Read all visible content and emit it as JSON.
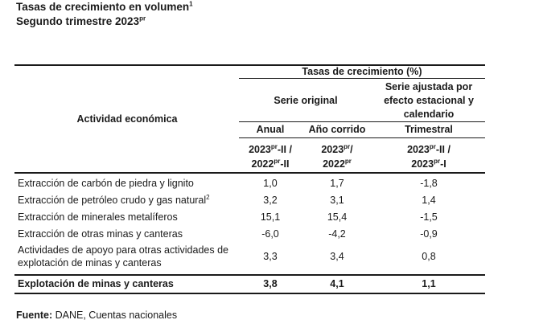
{
  "title": {
    "line1": "Tasas de crecimiento en volumen",
    "line1_sup": "1",
    "line2": "Segundo trimestre 2023",
    "line2_sup": "pr"
  },
  "table": {
    "row_header": "Actividad económica",
    "group_header": "Tasas de crecimiento (%)",
    "serie_original": "Serie original",
    "serie_ajustada": [
      "Serie ajustada por",
      "efecto estacional y",
      "calendario"
    ],
    "col_anual": "Anual",
    "col_corrido": "Año corrido",
    "col_trimestral": "Trimestral",
    "period_anual": {
      "a": "2023",
      "a_sup": "pr",
      "a_rest": "-II /",
      "b": "2022",
      "b_sup": "pr",
      "b_rest": "-II"
    },
    "period_corrido": {
      "a": "2023",
      "a_sup": "pr",
      "a_rest": "/",
      "b": "2022",
      "b_sup": "pr",
      "b_rest": ""
    },
    "period_trim": {
      "a": "2023",
      "a_sup": "pr",
      "a_rest": "-II /",
      "b": "2023",
      "b_sup": "pr",
      "b_rest": "-I"
    },
    "rows": [
      {
        "label": "Extracción de carbón de piedra y lignito",
        "sup": "",
        "anual": "1,0",
        "corrido": "1,7",
        "trim": "-1,8"
      },
      {
        "label": "Extracción de petróleo crudo y gas natural",
        "sup": "2",
        "anual": "3,2",
        "corrido": "3,1",
        "trim": "1,4"
      },
      {
        "label": "Extracción de minerales metalíferos",
        "sup": "",
        "anual": "15,1",
        "corrido": "15,4",
        "trim": "-1,5"
      },
      {
        "label": "Extracción de otras minas y canteras",
        "sup": "",
        "anual": "-6,0",
        "corrido": "-4,2",
        "trim": "-0,9"
      },
      {
        "label_line1": "Actividades de apoyo para otras actividades de",
        "label_line2": "explotación de minas y canteras",
        "anual": "3,3",
        "corrido": "3,4",
        "trim": "0,8"
      }
    ],
    "total": {
      "label": "Explotación de minas y canteras",
      "anual": "3,8",
      "corrido": "4,1",
      "trim": "1,1"
    }
  },
  "footer": {
    "label": "Fuente:",
    "text": " DANE, Cuentas nacionales"
  }
}
